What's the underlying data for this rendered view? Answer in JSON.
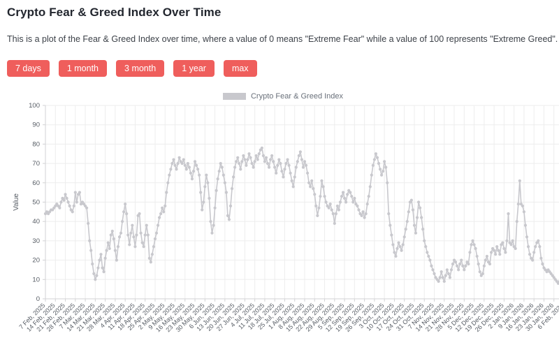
{
  "header": {
    "title": "Crypto Fear & Greed Index Over Time",
    "description": "This is a plot of the Fear & Greed Index over time, where a value of 0 means \"Extreme Fear\" while a value of 100 represents \"Extreme Greed\"."
  },
  "range_buttons": [
    {
      "label": "7 days"
    },
    {
      "label": "1 month"
    },
    {
      "label": "3 month"
    },
    {
      "label": "1 year"
    },
    {
      "label": "max"
    }
  ],
  "colors": {
    "accent": "#ef5e5c",
    "series": "#c8c8cd",
    "grid": "#ededed",
    "axis": "#d2d2d4",
    "tick_text": "#555b63"
  },
  "chart_data": {
    "type": "line",
    "title": "",
    "legend": [
      "Crypto Fear & Greed Index"
    ],
    "legend_position": "top-center",
    "xlabel": "",
    "ylabel": "Value",
    "ylim": [
      0,
      100
    ],
    "y_ticks": [
      0,
      10,
      20,
      30,
      40,
      50,
      60,
      70,
      80,
      90,
      100
    ],
    "grid": true,
    "marker": "circle",
    "x_tick_interval_days": 7,
    "x_tick_labels": [
      "7 Feb, 2025",
      "14 Feb, 2025",
      "21 Feb, 2025",
      "28 Feb, 2025",
      "7 Mar, 2025",
      "14 Mar, 2025",
      "21 Mar, 2025",
      "28 Mar, 2025",
      "4 Apr, 2025",
      "11 Apr, 2025",
      "18 Apr, 2025",
      "25 Apr, 2025",
      "2 May, 2025",
      "9 May, 2025",
      "16 May, 2025",
      "23 May, 2025",
      "30 May, 2025",
      "6 Jun, 2025",
      "13 Jun, 2025",
      "20 Jun, 2025",
      "27 Jun, 2025",
      "4 Jul, 2025",
      "11 Jul, 2025",
      "18 Jul, 2025",
      "25 Jul, 2025",
      "1 Aug, 2025",
      "8 Aug, 2025",
      "15 Aug, 2025",
      "22 Aug, 2025",
      "29 Aug, 2025",
      "5 Sep, 2025",
      "12 Sep, 2025",
      "19 Sep, 2025",
      "26 Sep, 2025",
      "3 Oct, 2025",
      "10 Oct, 2025",
      "17 Oct, 2025",
      "24 Oct, 2025",
      "31 Oct, 2025",
      "7 Nov, 2025",
      "14 Nov, 2025",
      "21 Nov, 2025",
      "28 Nov, 2025",
      "5 Dec, 2025",
      "12 Dec, 2025",
      "19 Dec, 2025",
      "26 Dec, 2025",
      "2 Jan, 2026",
      "9 Jan, 2026",
      "16 Jan, 2026",
      "23 Jan, 2026",
      "30 Jan, 2026",
      "6 Feb, 2026"
    ],
    "series": [
      {
        "name": "Crypto Fear & Greed Index",
        "values": [
          44,
          45,
          44,
          45,
          46,
          46,
          47,
          48,
          49,
          48,
          47,
          50,
          52,
          51,
          54,
          52,
          50,
          48,
          46,
          45,
          48,
          55,
          50,
          54,
          55,
          49,
          50,
          49,
          48,
          47,
          39,
          30,
          25,
          18,
          13,
          10,
          12,
          16,
          20,
          23,
          16,
          14,
          21,
          25,
          29,
          26,
          33,
          35,
          31,
          25,
          20,
          27,
          32,
          34,
          40,
          45,
          49,
          44,
          33,
          28,
          34,
          38,
          32,
          27,
          33,
          43,
          44,
          34,
          29,
          27,
          33,
          38,
          33,
          21,
          19,
          23,
          27,
          31,
          34,
          38,
          42,
          44,
          47,
          45,
          48,
          55,
          60,
          64,
          67,
          70,
          72,
          69,
          67,
          70,
          73,
          71,
          70,
          72,
          69,
          67,
          70,
          68,
          65,
          62,
          66,
          71,
          69,
          67,
          64,
          55,
          46,
          50,
          58,
          64,
          60,
          52,
          40,
          34,
          38,
          47,
          56,
          62,
          66,
          70,
          68,
          64,
          60,
          55,
          43,
          41,
          48,
          57,
          63,
          68,
          71,
          73,
          70,
          67,
          71,
          74,
          72,
          69,
          72,
          75,
          73,
          70,
          68,
          71,
          74,
          72,
          75,
          77,
          78,
          74,
          71,
          73,
          70,
          68,
          72,
          74,
          71,
          68,
          65,
          69,
          72,
          70,
          66,
          63,
          67,
          70,
          72,
          69,
          65,
          61,
          58,
          63,
          68,
          71,
          74,
          76,
          72,
          68,
          71,
          69,
          65,
          60,
          58,
          61,
          57,
          54,
          48,
          43,
          47,
          53,
          61,
          58,
          53,
          50,
          48,
          47,
          49,
          46,
          44,
          39,
          44,
          48,
          46,
          50,
          53,
          55,
          52,
          50,
          54,
          56,
          55,
          53,
          50,
          52,
          49,
          48,
          46,
          44,
          43,
          45,
          42,
          44,
          49,
          53,
          58,
          64,
          69,
          72,
          75,
          73,
          70,
          67,
          64,
          66,
          71,
          68,
          60,
          44,
          38,
          33,
          28,
          24,
          22,
          26,
          29,
          27,
          25,
          28,
          32,
          36,
          40,
          45,
          50,
          51,
          46,
          38,
          34,
          42,
          50,
          47,
          42,
          36,
          30,
          27,
          24,
          22,
          20,
          17,
          15,
          13,
          11,
          10,
          9,
          11,
          14,
          11,
          9,
          12,
          15,
          13,
          11,
          15,
          18,
          20,
          19,
          17,
          15,
          18,
          20,
          17,
          15,
          17,
          19,
          18,
          24,
          28,
          30,
          28,
          26,
          22,
          18,
          14,
          12,
          13,
          17,
          20,
          22,
          19,
          18,
          24,
          26,
          25,
          23,
          27,
          25,
          23,
          28,
          29,
          26,
          24,
          30,
          44,
          29,
          28,
          30,
          27,
          26,
          40,
          49,
          61,
          49,
          48,
          45,
          38,
          32,
          27,
          23,
          21,
          20,
          24,
          27,
          29,
          30,
          27,
          21,
          18,
          16,
          15,
          14,
          15,
          14,
          13,
          12,
          11,
          10,
          9,
          8,
          9,
          10,
          9,
          9
        ]
      }
    ]
  }
}
